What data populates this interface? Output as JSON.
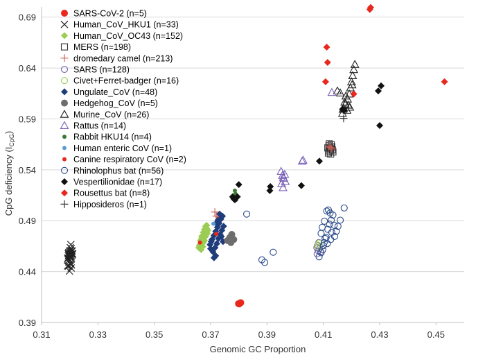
{
  "chart_data": {
    "type": "scatter",
    "title": "",
    "xlabel": "Genomic GC Proportion",
    "ylabel": "CpG deficiency (I",
    "ylabel_subscript": "CpG",
    "ylabel_suffix": ")",
    "xlim": [
      0.31,
      0.46
    ],
    "ylim": [
      0.39,
      0.7
    ],
    "xticks": [
      "0.31",
      "0.33",
      "0.35",
      "0.37",
      "0.39",
      "0.41",
      "0.43",
      "0.45"
    ],
    "yticks": [
      "0.39",
      "0.44",
      "0.49",
      "0.54",
      "0.59",
      "0.64",
      "0.69"
    ],
    "legend_position": "top-left",
    "series": [
      {
        "name": "SARS-CoV-2 (n=5)",
        "marker": "filled-circle",
        "color": "#e8281e",
        "points": [
          [
            0.3801,
            0.4082
          ],
          [
            0.3803,
            0.4088
          ],
          [
            0.3805,
            0.4091
          ],
          [
            0.3799,
            0.4085
          ],
          [
            0.3807,
            0.4094
          ]
        ]
      },
      {
        "name": "Human_CoV_HKU1 (n=33)",
        "marker": "x",
        "color": "#222222",
        "points": [
          [
            0.3196,
            0.4455
          ],
          [
            0.3199,
            0.4405
          ],
          [
            0.3202,
            0.4635
          ],
          [
            0.3205,
            0.4435
          ],
          [
            0.3194,
            0.4535
          ],
          [
            0.3201,
            0.4605
          ],
          [
            0.3208,
            0.4575
          ],
          [
            0.3197,
            0.4565
          ],
          [
            0.3204,
            0.4545
          ],
          [
            0.3199,
            0.4595
          ],
          [
            0.3206,
            0.4555
          ],
          [
            0.3193,
            0.4525
          ],
          [
            0.3203,
            0.4585
          ],
          [
            0.3209,
            0.4565
          ],
          [
            0.3198,
            0.4515
          ],
          [
            0.3204,
            0.4665
          ],
          [
            0.3201,
            0.4575
          ],
          [
            0.3207,
            0.4595
          ],
          [
            0.3195,
            0.4555
          ],
          [
            0.3202,
            0.4485
          ],
          [
            0.3206,
            0.4465
          ],
          [
            0.3197,
            0.4495
          ],
          [
            0.3192,
            0.4455
          ],
          [
            0.3205,
            0.4625
          ],
          [
            0.32,
            0.4545
          ],
          [
            0.321,
            0.4575
          ],
          [
            0.3199,
            0.4555
          ],
          [
            0.3203,
            0.4535
          ],
          [
            0.3196,
            0.4585
          ],
          [
            0.3208,
            0.4605
          ],
          [
            0.3201,
            0.4565
          ],
          [
            0.3204,
            0.4475
          ],
          [
            0.3195,
            0.4575
          ]
        ]
      },
      {
        "name": "Human_CoV_OC43 (n=152)",
        "marker": "filled-diamond",
        "color": "#9ccc54",
        "points": [
          [
            0.3658,
            0.4635
          ],
          [
            0.3662,
            0.4665
          ],
          [
            0.3666,
            0.4695
          ],
          [
            0.3668,
            0.4725
          ],
          [
            0.3672,
            0.4755
          ],
          [
            0.3674,
            0.4785
          ],
          [
            0.3678,
            0.4815
          ],
          [
            0.3682,
            0.4845
          ],
          [
            0.3664,
            0.4705
          ],
          [
            0.367,
            0.4675
          ],
          [
            0.3676,
            0.4735
          ],
          [
            0.368,
            0.4765
          ],
          [
            0.3684,
            0.4795
          ],
          [
            0.3686,
            0.4825
          ],
          [
            0.366,
            0.4655
          ],
          [
            0.3666,
            0.4615
          ],
          [
            0.3672,
            0.4645
          ],
          [
            0.3678,
            0.4705
          ],
          [
            0.3682,
            0.4745
          ],
          [
            0.3688,
            0.4775
          ],
          [
            0.3674,
            0.4685
          ],
          [
            0.3668,
            0.4745
          ],
          [
            0.3686,
            0.4855
          ],
          [
            0.369,
            0.4805
          ]
        ]
      },
      {
        "name": "MERS (n=198)",
        "marker": "open-square",
        "color": "#333333",
        "points": [
          [
            0.4118,
            0.5565
          ],
          [
            0.4122,
            0.5585
          ],
          [
            0.4126,
            0.5605
          ],
          [
            0.413,
            0.5625
          ],
          [
            0.412,
            0.5635
          ],
          [
            0.4124,
            0.5615
          ],
          [
            0.4128,
            0.5645
          ],
          [
            0.4132,
            0.5595
          ],
          [
            0.4116,
            0.5615
          ],
          [
            0.4134,
            0.5575
          ],
          [
            0.4126,
            0.5555
          ],
          [
            0.4121,
            0.5655
          ]
        ]
      },
      {
        "name": "dromedary camel (n=213)",
        "marker": "plus",
        "color": "#d0605a",
        "points": [
          [
            0.3715,
            0.4985
          ],
          [
            0.373,
            0.4935
          ],
          [
            0.372,
            0.4945
          ],
          [
            0.4125,
            0.562
          ],
          [
            0.413,
            0.5605
          ],
          [
            0.412,
            0.563
          ]
        ]
      },
      {
        "name": "SARS (n=128)",
        "marker": "open-circle",
        "color": "#7060b0",
        "points": [
          [
            0.4078,
            0.4575
          ],
          [
            0.4082,
            0.4605
          ],
          [
            0.4086,
            0.4625
          ],
          [
            0.4079,
            0.4655
          ],
          [
            0.4084,
            0.4685
          ],
          [
            0.409,
            0.4595
          ],
          [
            0.4077,
            0.4635
          ]
        ]
      },
      {
        "name": "Civet+Ferret-badger (n=16)",
        "marker": "open-circle",
        "color": "#9ccc54",
        "points": [
          [
            0.408,
            0.466
          ],
          [
            0.4085,
            0.468
          ],
          [
            0.4082,
            0.464
          ]
        ]
      },
      {
        "name": "Ungulate_CoV (n=48)",
        "marker": "filled-diamond",
        "color": "#1f3d7a",
        "points": [
          [
            0.3698,
            0.4665
          ],
          [
            0.3705,
            0.4715
          ],
          [
            0.3712,
            0.4755
          ],
          [
            0.3718,
            0.4795
          ],
          [
            0.3724,
            0.4835
          ],
          [
            0.373,
            0.4875
          ],
          [
            0.3736,
            0.4915
          ],
          [
            0.3742,
            0.4945
          ],
          [
            0.37,
            0.4625
          ],
          [
            0.3708,
            0.4595
          ],
          [
            0.3716,
            0.4635
          ],
          [
            0.3722,
            0.4675
          ],
          [
            0.3728,
            0.4725
          ],
          [
            0.3734,
            0.4765
          ],
          [
            0.374,
            0.4805
          ],
          [
            0.3746,
            0.4845
          ],
          [
            0.3712,
            0.4535
          ],
          [
            0.3718,
            0.4555
          ],
          [
            0.3702,
            0.4695
          ],
          [
            0.3726,
            0.4905
          ],
          [
            0.3732,
            0.4965
          ],
          [
            0.3738,
            0.4745
          ],
          [
            0.3744,
            0.4695
          ],
          [
            0.372,
            0.4875
          ]
        ]
      },
      {
        "name": "Hedgehog_CoV (n=5)",
        "marker": "filled-circle",
        "color": "#6d6d6d",
        "points": [
          [
            0.376,
            0.4705
          ],
          [
            0.3768,
            0.4735
          ],
          [
            0.3775,
            0.4765
          ],
          [
            0.3782,
            0.4715
          ],
          [
            0.3772,
            0.4685
          ]
        ]
      },
      {
        "name": "Murine_CoV (n=26)",
        "marker": "open-triangle",
        "color": "#222222",
        "points": [
          [
            0.4168,
            0.5955
          ],
          [
            0.4172,
            0.6005
          ],
          [
            0.4176,
            0.6065
          ],
          [
            0.418,
            0.6125
          ],
          [
            0.4184,
            0.5985
          ],
          [
            0.4188,
            0.6035
          ],
          [
            0.4192,
            0.6145
          ],
          [
            0.4196,
            0.6205
          ],
          [
            0.42,
            0.6265
          ],
          [
            0.4204,
            0.6325
          ],
          [
            0.4208,
            0.6385
          ],
          [
            0.4212,
            0.6435
          ],
          [
            0.417,
            0.5995
          ],
          [
            0.4178,
            0.6045
          ],
          [
            0.4186,
            0.6095
          ],
          [
            0.4194,
            0.6015
          ],
          [
            0.4202,
            0.6235
          ],
          [
            0.416,
            0.6155
          ],
          [
            0.415,
            0.6175
          ]
        ]
      },
      {
        "name": "Rattus (n=14)",
        "marker": "open-triangle",
        "color": "#7a5fb8",
        "points": [
          [
            0.395,
            0.5385
          ],
          [
            0.3955,
            0.5345
          ],
          [
            0.396,
            0.5315
          ],
          [
            0.3965,
            0.5285
          ],
          [
            0.3952,
            0.5265
          ],
          [
            0.3958,
            0.5325
          ],
          [
            0.3963,
            0.5355
          ],
          [
            0.4025,
            0.5485
          ],
          [
            0.4028,
            0.5495
          ],
          [
            0.413,
            0.616
          ],
          [
            0.3957,
            0.5225
          ]
        ]
      },
      {
        "name": "Rabbit HKU14 (n=4)",
        "marker": "filled-circle-small",
        "color": "#3a7a34",
        "points": [
          [
            0.3786,
            0.5195
          ],
          [
            0.3788,
            0.5165
          ],
          [
            0.3784,
            0.5135
          ],
          [
            0.379,
            0.5105
          ]
        ]
      },
      {
        "name": "Human enteric CoV (n=1)",
        "marker": "filled-circle-small",
        "color": "#5b9bd5",
        "points": [
          [
            0.371,
            0.487
          ]
        ]
      },
      {
        "name": "Canine respiratory CoV (n=2)",
        "marker": "filled-circle-small",
        "color": "#e8281e",
        "points": [
          [
            0.3662,
            0.4685
          ],
          [
            0.372,
            0.477
          ]
        ]
      },
      {
        "name": "Rhinolophus bat (n=56)",
        "marker": "open-circle",
        "color": "#2a4a8a",
        "points": [
          [
            0.3828,
            0.4965
          ],
          [
            0.3882,
            0.4515
          ],
          [
            0.3892,
            0.449
          ],
          [
            0.3922,
            0.459
          ],
          [
            0.4085,
            0.4545
          ],
          [
            0.4092,
            0.4585
          ],
          [
            0.4098,
            0.4615
          ],
          [
            0.4103,
            0.4685
          ],
          [
            0.411,
            0.4735
          ],
          [
            0.4116,
            0.4815
          ],
          [
            0.4122,
            0.4865
          ],
          [
            0.4128,
            0.4905
          ],
          [
            0.4134,
            0.4955
          ],
          [
            0.4112,
            0.4995
          ],
          [
            0.4118,
            0.5005
          ],
          [
            0.4124,
            0.4975
          ],
          [
            0.4104,
            0.4895
          ],
          [
            0.4096,
            0.4835
          ],
          [
            0.4092,
            0.4775
          ],
          [
            0.414,
            0.4745
          ],
          [
            0.4146,
            0.4795
          ],
          [
            0.4152,
            0.4845
          ],
          [
            0.416,
            0.4905
          ],
          [
            0.4174,
            0.5025
          ],
          [
            0.4106,
            0.4725
          ],
          [
            0.413,
            0.4785
          ],
          [
            0.4138,
            0.4855
          ],
          [
            0.41,
            0.4655
          ],
          [
            0.4114,
            0.4675
          ],
          [
            0.4126,
            0.4715
          ]
        ]
      },
      {
        "name": "Vespertilionidae (n=17)",
        "marker": "filled-diamond",
        "color": "#111111",
        "points": [
          [
            0.3778,
            0.5135
          ],
          [
            0.3782,
            0.5115
          ],
          [
            0.3786,
            0.5105
          ],
          [
            0.3795,
            0.5135
          ],
          [
            0.38,
            0.5255
          ],
          [
            0.391,
            0.5195
          ],
          [
            0.3912,
            0.5235
          ],
          [
            0.4022,
            0.5245
          ],
          [
            0.4086,
            0.5485
          ],
          [
            0.4168,
            0.5995
          ],
          [
            0.4173,
            0.5985
          ],
          [
            0.4295,
            0.6175
          ],
          [
            0.4305,
            0.6225
          ],
          [
            0.43,
            0.5835
          ]
        ]
      },
      {
        "name": "Rousettus bat (n=8)",
        "marker": "filled-diamond",
        "color": "#e8281e",
        "points": [
          [
            0.4265,
            0.6975
          ],
          [
            0.4268,
            0.6995
          ],
          [
            0.4112,
            0.6605
          ],
          [
            0.4115,
            0.6455
          ],
          [
            0.4108,
            0.6265
          ],
          [
            0.4208,
            0.6145
          ],
          [
            0.453,
            0.6265
          ]
        ]
      },
      {
        "name": "Hipposideros (n=1)",
        "marker": "plus",
        "color": "#333333",
        "points": [
          [
            0.4172,
            0.5905
          ]
        ]
      }
    ]
  }
}
